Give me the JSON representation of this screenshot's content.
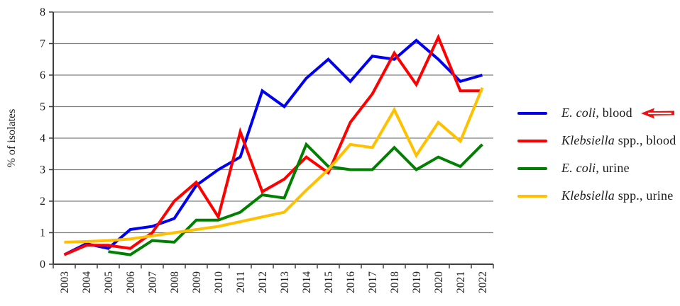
{
  "chart_data": {
    "type": "line",
    "title": "",
    "xlabel": "",
    "ylabel": "% of isolates",
    "ylim": [
      0,
      8
    ],
    "ytick_step": 1,
    "ytick_labels": [
      "0",
      "1",
      "2",
      "3",
      "4",
      "5",
      "6",
      "7",
      "8"
    ],
    "grid": true,
    "legend_position": "right",
    "categories": [
      "2003",
      "2004",
      "2005",
      "2006",
      "2007",
      "2008",
      "2009",
      "2010",
      "2011",
      "2012",
      "2013",
      "2014",
      "2015",
      "2016",
      "2017",
      "2018",
      "2019",
      "2020",
      "2021",
      "2022"
    ],
    "series": [
      {
        "name": "E. coli, blood",
        "color": "#0000ee",
        "values": [
          0.3,
          0.65,
          0.5,
          1.1,
          1.2,
          1.45,
          2.5,
          3.0,
          3.4,
          5.5,
          5.0,
          5.9,
          6.5,
          5.8,
          6.6,
          6.5,
          7.1,
          6.5,
          5.8,
          6.0
        ]
      },
      {
        "name": "Klebsiella spp., blood",
        "color": "#ff0000",
        "values": [
          0.3,
          0.6,
          0.6,
          0.5,
          1.0,
          2.0,
          2.6,
          1.5,
          4.2,
          2.3,
          2.7,
          3.4,
          2.9,
          4.5,
          5.4,
          6.7,
          5.7,
          7.2,
          5.5,
          5.5
        ]
      },
      {
        "name": "E. coli, urine",
        "color": "#008000",
        "values": [
          null,
          null,
          0.4,
          0.3,
          0.75,
          0.7,
          1.4,
          1.4,
          1.65,
          2.2,
          2.1,
          3.8,
          3.1,
          3.0,
          3.0,
          3.7,
          3.0,
          3.4,
          3.1,
          3.8
        ]
      },
      {
        "name": "Klebsiella spp., urine",
        "color": "#ffc000",
        "values": [
          0.7,
          0.72,
          0.75,
          0.8,
          0.9,
          1.0,
          1.1,
          1.2,
          1.35,
          1.5,
          1.65,
          2.35,
          3.0,
          3.8,
          3.7,
          4.9,
          3.45,
          4.5,
          3.9,
          5.6
        ]
      }
    ]
  },
  "legend": {
    "entries": [
      {
        "genus": "E. coli",
        "rest": ", blood",
        "color": "#0000ee",
        "arrow": true
      },
      {
        "genus": "Klebsiella",
        "rest": " spp., blood",
        "color": "#ff0000",
        "arrow": false
      },
      {
        "genus": "E. coli",
        "rest": ", urine",
        "color": "#008000",
        "arrow": false
      },
      {
        "genus": "Klebsiella",
        "rest": " spp., urine",
        "color": "#ffc000",
        "arrow": false
      }
    ],
    "arrow_color": "#ee1111"
  },
  "axes": {
    "y_title": "% of isolates",
    "gridline_color": "#808080",
    "axis_color": "#404040",
    "text_color": "#1a1a1a"
  }
}
